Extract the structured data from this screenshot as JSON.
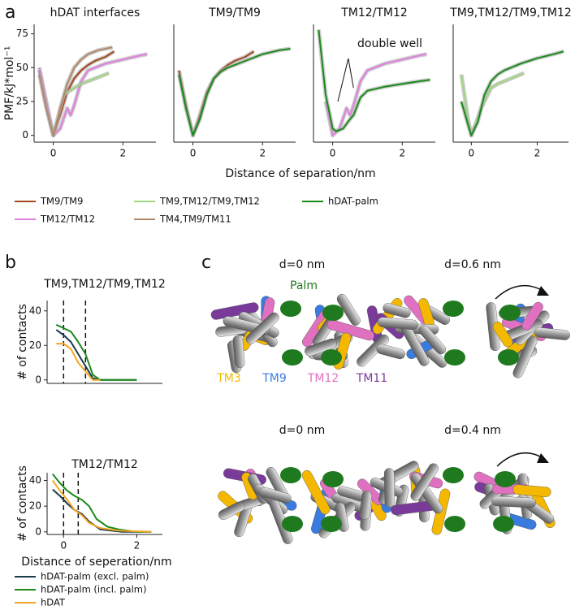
{
  "panel_labels": [
    "a",
    "b",
    "c"
  ],
  "panel_a": {
    "xlabel": "Distance of separation/nm"
  },
  "chart_data": [
    {
      "type": "line",
      "title": "hDAT interfaces",
      "ylabel": "PMF/kJ*mol⁻¹",
      "xlim": [
        -0.55,
        2.95
      ],
      "ylim": [
        -5,
        82
      ],
      "xticks": [
        0,
        2
      ],
      "yticks": [
        0,
        25,
        50,
        75
      ],
      "series": [
        {
          "name": "TM9/TM9",
          "color": "#a3461c",
          "x": [
            -0.4,
            -0.2,
            0,
            0.2,
            0.4,
            0.6,
            0.8,
            1.0,
            1.2,
            1.5,
            1.75
          ],
          "values": [
            48,
            22,
            0,
            15,
            32,
            42,
            48,
            52,
            55,
            58,
            62
          ]
        },
        {
          "name": "TM12/TM12",
          "color": "#e07ee0",
          "x": [
            -0.4,
            -0.2,
            0,
            0.2,
            0.4,
            0.5,
            0.6,
            0.8,
            1.0,
            1.5,
            2.0,
            2.5,
            2.7
          ],
          "values": [
            50,
            25,
            0,
            5,
            20,
            15,
            22,
            40,
            48,
            53,
            56,
            59,
            60
          ]
        },
        {
          "name": "TM9,TM12/TM9,TM12",
          "color": "#9fd67f",
          "x": [
            0.3,
            0.6,
            0.8,
            1.0,
            1.2,
            1.5,
            1.6
          ],
          "values": [
            30,
            35,
            38,
            40,
            42,
            45,
            46
          ]
        },
        {
          "name": "TM4,TM9/TM11",
          "color": "#b08a6a",
          "x": [
            -0.4,
            -0.2,
            0,
            0.2,
            0.4,
            0.6,
            0.8,
            1.0,
            1.3,
            1.7
          ],
          "values": [
            45,
            20,
            0,
            20,
            38,
            50,
            56,
            60,
            63,
            65
          ]
        }
      ]
    },
    {
      "type": "line",
      "title": "TM9/TM9",
      "xlim": [
        -0.55,
        2.95
      ],
      "ylim": [
        -5,
        82
      ],
      "xticks": [
        0,
        2
      ],
      "series": [
        {
          "name": "TM9/TM9",
          "color": "#a3461c",
          "x": [
            -0.4,
            -0.2,
            0,
            0.2,
            0.4,
            0.6,
            0.8,
            1.0,
            1.2,
            1.5,
            1.75
          ],
          "values": [
            48,
            22,
            0,
            15,
            32,
            42,
            48,
            52,
            55,
            58,
            62
          ]
        },
        {
          "name": "hDAT-palm",
          "color": "#1a8a1a",
          "x": [
            -0.4,
            -0.2,
            0,
            0.2,
            0.4,
            0.6,
            0.8,
            1.0,
            1.5,
            2.0,
            2.5,
            2.8
          ],
          "values": [
            45,
            20,
            0,
            12,
            30,
            42,
            47,
            50,
            55,
            60,
            63,
            64
          ]
        }
      ]
    },
    {
      "type": "line",
      "title": "TM12/TM12",
      "annotation": "double well",
      "xlim": [
        -0.55,
        2.95
      ],
      "ylim": [
        -5,
        82
      ],
      "xticks": [
        0,
        2
      ],
      "series": [
        {
          "name": "TM12/TM12",
          "color": "#e07ee0",
          "x": [
            -0.2,
            0,
            0.2,
            0.4,
            0.5,
            0.6,
            0.8,
            1.0,
            1.5,
            2.0,
            2.5,
            2.7
          ],
          "values": [
            25,
            0,
            5,
            20,
            15,
            22,
            40,
            48,
            53,
            56,
            59,
            60
          ]
        },
        {
          "name": "hDAT-palm",
          "color": "#1a8a1a",
          "x": [
            -0.4,
            -0.2,
            0,
            0.1,
            0.3,
            0.5,
            0.6,
            0.8,
            1.0,
            1.5,
            2.0,
            2.5,
            2.8
          ],
          "values": [
            78,
            30,
            5,
            3,
            5,
            12,
            15,
            28,
            33,
            36,
            38,
            40,
            41
          ]
        }
      ]
    },
    {
      "type": "line",
      "title": "TM9,TM12/TM9,TM12",
      "xlim": [
        -0.55,
        2.95
      ],
      "ylim": [
        -5,
        82
      ],
      "xticks": [
        0,
        2
      ],
      "series": [
        {
          "name": "TM9,TM12/TM9,TM12",
          "color": "#9fd67f",
          "x": [
            -0.3,
            -0.1,
            0,
            0.3,
            0.6,
            0.8,
            1.0,
            1.2,
            1.5,
            1.6
          ],
          "values": [
            45,
            12,
            0,
            20,
            35,
            38,
            40,
            42,
            45,
            46
          ]
        },
        {
          "name": "hDAT-palm",
          "color": "#1a8a1a",
          "x": [
            -0.3,
            -0.1,
            0,
            0.2,
            0.4,
            0.6,
            0.8,
            1.0,
            1.5,
            2.0,
            2.5,
            2.8
          ],
          "values": [
            25,
            8,
            0,
            10,
            30,
            40,
            45,
            48,
            53,
            57,
            60,
            62
          ]
        }
      ]
    },
    {
      "type": "line",
      "title": "TM9,TM12/TM9,TM12",
      "ylabel": "# of contacts",
      "xlim": [
        -0.45,
        2.7
      ],
      "ylim": [
        -2,
        46
      ],
      "yticks": [
        0,
        20,
        40
      ],
      "vlines": [
        0,
        0.6
      ],
      "series": [
        {
          "name": "hDAT-palm (excl. palm)",
          "color": "#1c3a4a",
          "x": [
            -0.2,
            0,
            0.2,
            0.4,
            0.6,
            0.8,
            1.0,
            2.0
          ],
          "values": [
            29,
            26,
            22,
            15,
            8,
            1,
            0,
            0
          ]
        },
        {
          "name": "hDAT-palm (incl. palm)",
          "color": "#1a8a1a",
          "x": [
            -0.2,
            0,
            0.2,
            0.4,
            0.6,
            0.8,
            1.0,
            1.4,
            2.0
          ],
          "values": [
            32,
            30,
            28,
            22,
            15,
            3,
            0,
            0,
            0
          ]
        },
        {
          "name": "hDAT",
          "color": "#f5a623",
          "x": [
            -0.2,
            0,
            0.2,
            0.4,
            0.6,
            0.8,
            1.0
          ],
          "values": [
            21,
            21,
            18,
            10,
            5,
            0,
            0
          ]
        }
      ]
    },
    {
      "type": "line",
      "title": "TM12/TM12",
      "ylabel": "# of contacts",
      "xlabel": "Distance of seperation/nm",
      "xlim": [
        -0.45,
        2.7
      ],
      "ylim": [
        -2,
        46
      ],
      "xticks": [
        0,
        2
      ],
      "yticks": [
        0,
        20,
        40
      ],
      "vlines": [
        0,
        0.4
      ],
      "series": [
        {
          "name": "hDAT-palm (excl. palm)",
          "color": "#1c3a4a",
          "x": [
            -0.3,
            -0.1,
            0.1,
            0.3,
            0.5,
            0.7,
            1.0,
            1.3,
            1.6,
            2.0,
            2.4
          ],
          "values": [
            33,
            28,
            22,
            17,
            14,
            8,
            2,
            1,
            0,
            0,
            0
          ]
        },
        {
          "name": "hDAT-palm (incl. palm)",
          "color": "#1a8a1a",
          "x": [
            -0.3,
            -0.1,
            0.1,
            0.3,
            0.5,
            0.7,
            0.9,
            1.2,
            1.5,
            2.0,
            2.4
          ],
          "values": [
            45,
            38,
            32,
            28,
            25,
            20,
            10,
            4,
            2,
            0,
            0
          ]
        },
        {
          "name": "hDAT",
          "color": "#f5a623",
          "x": [
            -0.3,
            -0.1,
            0.1,
            0.3,
            0.5,
            0.7,
            1.0,
            1.5,
            2.4
          ],
          "values": [
            40,
            32,
            25,
            17,
            13,
            7,
            3,
            1,
            0
          ]
        }
      ]
    }
  ],
  "panel_c": {
    "labels": [
      "d=0 nm",
      "d=0.6 nm",
      "d=0 nm",
      "d=0.4 nm"
    ],
    "palm": "Palm",
    "palm_color": "#1f7a1f",
    "helices": [
      {
        "name": "TM3",
        "color": "#f5b800"
      },
      {
        "name": "TM9",
        "color": "#3a7be0"
      },
      {
        "name": "TM12",
        "color": "#e070c0"
      },
      {
        "name": "TM11",
        "color": "#7a3a9a"
      }
    ]
  }
}
